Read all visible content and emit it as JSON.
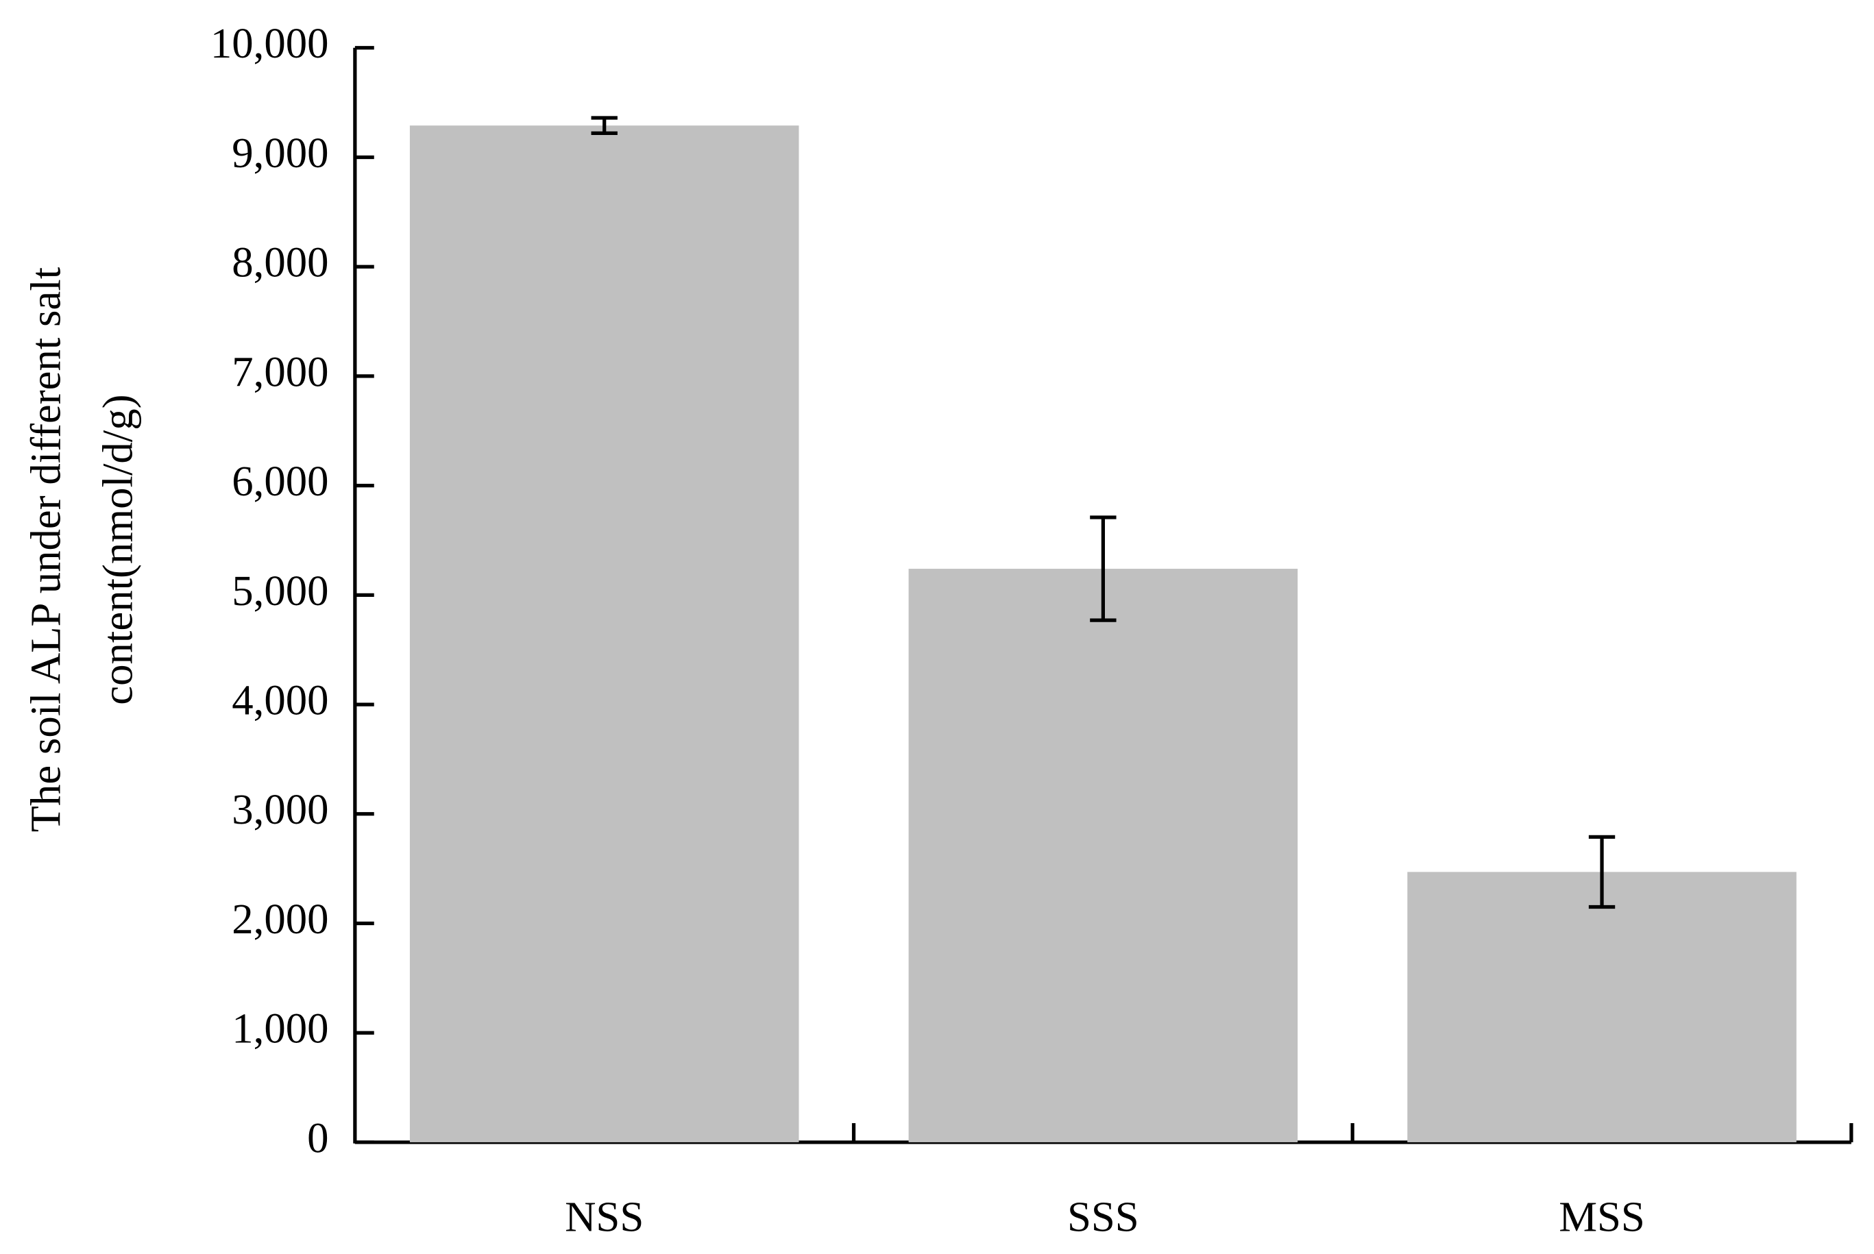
{
  "chart_data": {
    "type": "bar",
    "ylabel": [
      "The  soil ALP under different salt",
      "content(nmol/d/g)"
    ],
    "categories": [
      "NSS",
      "SSS",
      "MSS"
    ],
    "values": [
      9290,
      5240,
      2470
    ],
    "errors": [
      70,
      470,
      320
    ],
    "color": "#c0c0c0",
    "ylim": [
      0,
      10000
    ],
    "yticks": [
      0,
      {
        "value": 1000,
        "label": "1,000"
      },
      {
        "value": 2000,
        "label": "2,000"
      },
      {
        "value": 3000,
        "label": "3,000"
      },
      {
        "value": 4000,
        "label": "4,000"
      },
      {
        "value": 5000,
        "label": "5,000"
      },
      {
        "value": 6000,
        "label": "6,000"
      },
      {
        "value": 7000,
        "label": "7,000"
      },
      {
        "value": 8000,
        "label": "8,000"
      },
      {
        "value": 9000,
        "label": "9,000"
      },
      {
        "value": 10000,
        "label": "10,000"
      }
    ]
  }
}
